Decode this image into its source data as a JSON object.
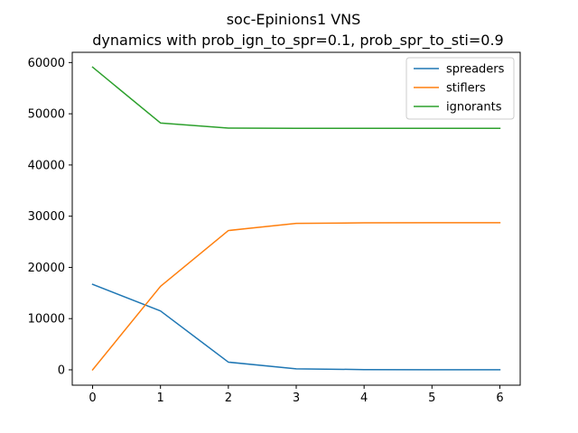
{
  "chart_data": {
    "type": "line",
    "title": "soc-Epinions1 VNS",
    "subtitle": "dynamics with prob_ign_to_spr=0.1, prob_spr_to_sti=0.9",
    "xlabel": "",
    "ylabel": "",
    "x": [
      0,
      1,
      2,
      3,
      4,
      5,
      6
    ],
    "xlim": [
      -0.3,
      6.3
    ],
    "ylim": [
      -3000,
      62000
    ],
    "xticks": [
      0,
      1,
      2,
      3,
      4,
      5,
      6
    ],
    "yticks": [
      0,
      10000,
      20000,
      30000,
      40000,
      50000,
      60000
    ],
    "grid": false,
    "legend_position": "top-right",
    "series": [
      {
        "name": "spreaders",
        "color": "#1f77b4",
        "values": [
          16700,
          11500,
          1500,
          200,
          50,
          20,
          10
        ]
      },
      {
        "name": "stiflers",
        "color": "#ff7f0e",
        "values": [
          0,
          16300,
          27200,
          28600,
          28700,
          28720,
          28720
        ]
      },
      {
        "name": "ignorants",
        "color": "#2ca02c",
        "values": [
          59100,
          48200,
          47200,
          47150,
          47150,
          47150,
          47150
        ]
      }
    ]
  }
}
